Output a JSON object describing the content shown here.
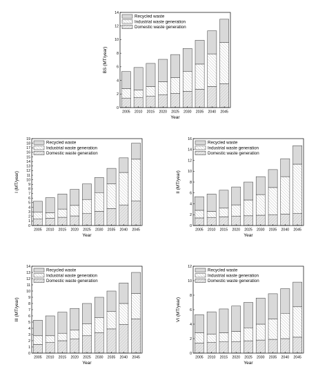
{
  "chart_data": [
    {
      "type": "bar",
      "stacked": true,
      "ylabel": "BS (MT/year)",
      "xlabel": "Year",
      "categories": [
        "2005",
        "2010",
        "2015",
        "2020",
        "2025",
        "2030",
        "2035",
        "2040",
        "2045"
      ],
      "ylim": [
        0,
        14
      ],
      "yticks": [
        0,
        2,
        4,
        6,
        8,
        10,
        12,
        14
      ],
      "legend": "top-left",
      "series": [
        {
          "name": "Domestic waste generation",
          "values": [
            1.4,
            1.5,
            1.7,
            1.9,
            2.1,
            2.4,
            2.7,
            3.1,
            3.5
          ]
        },
        {
          "name": "Industrial waste generation",
          "values": [
            1.4,
            1.1,
            1.4,
            1.9,
            2.3,
            2.9,
            3.7,
            4.8,
            6.1
          ]
        },
        {
          "name": "Recycled waste",
          "values": [
            2.5,
            3.3,
            3.4,
            3.3,
            3.4,
            3.4,
            3.5,
            3.4,
            3.4
          ]
        }
      ]
    },
    {
      "type": "bar",
      "stacked": true,
      "ylabel": "I (MT/year)",
      "xlabel": "Year",
      "categories": [
        "2005",
        "2010",
        "2015",
        "2020",
        "2025",
        "2030",
        "2035",
        "2040",
        "2045"
      ],
      "ylim": [
        0,
        19
      ],
      "yticks": [
        0,
        1,
        2,
        3,
        4,
        5,
        6,
        7,
        8,
        9,
        10,
        11,
        12,
        13,
        14,
        15,
        16,
        17,
        18,
        19
      ],
      "legend": "top-left",
      "series": [
        {
          "name": "Domestic waste generation",
          "values": [
            1.4,
            1.6,
            1.8,
            2.1,
            2.6,
            3.1,
            3.7,
            4.5,
            5.4
          ]
        },
        {
          "name": "Industrial waste generation",
          "values": [
            1.5,
            1.2,
            1.8,
            2.3,
            3.1,
            4.1,
            5.4,
            7.1,
            9.1
          ]
        },
        {
          "name": "Recycled waste",
          "values": [
            2.4,
            3.3,
            3.3,
            3.5,
            3.4,
            3.3,
            3.4,
            3.2,
            3.5
          ]
        }
      ]
    },
    {
      "type": "bar",
      "stacked": true,
      "ylabel": "II (MT/year)",
      "xlabel": "Year",
      "categories": [
        "2005",
        "2010",
        "2015",
        "2020",
        "2025",
        "2030",
        "2035",
        "2040",
        "2045"
      ],
      "ylim": [
        0,
        16
      ],
      "yticks": [
        0,
        2,
        4,
        6,
        8,
        10,
        12,
        14,
        16
      ],
      "legend": "top-left",
      "series": [
        {
          "name": "Domestic waste generation",
          "values": [
            1.4,
            1.5,
            1.6,
            1.7,
            1.8,
            1.9,
            2.0,
            2.1,
            2.2
          ]
        },
        {
          "name": "Industrial waste generation",
          "values": [
            1.4,
            1.1,
            1.6,
            2.1,
            2.9,
            3.8,
            5.0,
            6.9,
            9.1
          ]
        },
        {
          "name": "Recycled waste",
          "values": [
            2.5,
            3.2,
            3.3,
            3.3,
            3.3,
            3.3,
            3.3,
            3.3,
            3.4
          ]
        }
      ]
    },
    {
      "type": "bar",
      "stacked": true,
      "ylabel": "III (MT/year)",
      "xlabel": "Year",
      "categories": [
        "2005",
        "2010",
        "2015",
        "2020",
        "2025",
        "2030",
        "2035",
        "2040",
        "2045"
      ],
      "ylim": [
        0,
        14
      ],
      "yticks": [
        0,
        1,
        2,
        3,
        4,
        5,
        6,
        7,
        8,
        9,
        10,
        11,
        12,
        13,
        14
      ],
      "legend": "top-left",
      "series": [
        {
          "name": "Domestic waste generation",
          "values": [
            1.4,
            1.7,
            2.0,
            2.3,
            2.8,
            3.3,
            3.9,
            4.6,
            5.5
          ]
        },
        {
          "name": "Industrial waste generation",
          "values": [
            1.4,
            1.1,
            1.2,
            1.4,
            1.9,
            2.4,
            2.8,
            3.4,
            4.1
          ]
        },
        {
          "name": "Recycled waste",
          "values": [
            2.5,
            3.2,
            3.4,
            3.5,
            3.3,
            3.3,
            3.3,
            3.3,
            3.4
          ]
        }
      ]
    },
    {
      "type": "bar",
      "stacked": true,
      "ylabel": "VI (MT/year)",
      "xlabel": "Year",
      "categories": [
        "2005",
        "2010",
        "2015",
        "2020",
        "2025",
        "2030",
        "2035",
        "2040",
        "2045"
      ],
      "ylim": [
        0,
        12
      ],
      "yticks": [
        0,
        2,
        4,
        6,
        8,
        10,
        12
      ],
      "legend": "top-left",
      "series": [
        {
          "name": "Domestic waste generation",
          "values": [
            1.4,
            1.5,
            1.55,
            1.6,
            1.7,
            1.8,
            1.9,
            2.0,
            2.2
          ]
        },
        {
          "name": "Industrial waste generation",
          "values": [
            1.4,
            1.1,
            1.25,
            1.4,
            1.8,
            2.2,
            2.8,
            3.5,
            4.2
          ]
        },
        {
          "name": "Recycled waste",
          "values": [
            2.5,
            3.1,
            3.3,
            3.5,
            3.5,
            3.6,
            3.5,
            3.4,
            3.4
          ]
        }
      ]
    }
  ]
}
